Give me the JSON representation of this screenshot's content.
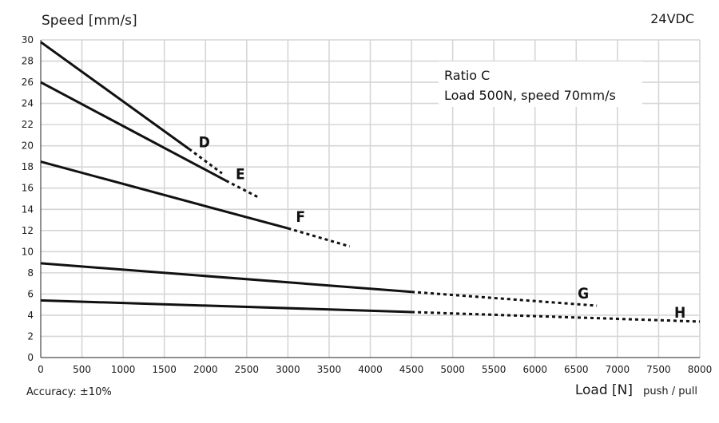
{
  "chart_data": {
    "type": "line",
    "xlabel": "Load [N]",
    "xlabel_suffix": "push / pull",
    "ylabel": "Speed [mm/s]",
    "xlim": [
      0,
      8000
    ],
    "ylim": [
      0,
      30
    ],
    "x_ticks": [
      0,
      500,
      1000,
      1500,
      2000,
      2500,
      3000,
      3500,
      4000,
      4500,
      5000,
      5500,
      6000,
      6500,
      7000,
      7500,
      8000
    ],
    "y_ticks": [
      0,
      2,
      4,
      6,
      8,
      10,
      12,
      14,
      16,
      18,
      20,
      22,
      24,
      26,
      28,
      30
    ],
    "grid": true,
    "corner_label": "24VDC",
    "note": "Accuracy: ±10%",
    "info_box": [
      "Ratio C",
      "Load 500N, speed 70mm/s"
    ],
    "series": [
      {
        "name": "D",
        "solid": [
          [
            0,
            29.8
          ],
          [
            1800,
            19.7
          ]
        ],
        "dashed": [
          [
            1800,
            19.7
          ],
          [
            2200,
            17.4
          ]
        ]
      },
      {
        "name": "E",
        "solid": [
          [
            0,
            26.0
          ],
          [
            2250,
            16.7
          ]
        ],
        "dashed": [
          [
            2250,
            16.7
          ],
          [
            2650,
            15.1
          ]
        ]
      },
      {
        "name": "F",
        "solid": [
          [
            0,
            18.5
          ],
          [
            3000,
            12.2
          ]
        ],
        "dashed": [
          [
            3000,
            12.2
          ],
          [
            3750,
            10.5
          ]
        ]
      },
      {
        "name": "G",
        "solid": [
          [
            0,
            8.9
          ],
          [
            4500,
            6.2
          ]
        ],
        "dashed": [
          [
            4500,
            6.2
          ],
          [
            6750,
            4.9
          ]
        ]
      },
      {
        "name": "H",
        "solid": [
          [
            0,
            5.4
          ],
          [
            4500,
            4.3
          ]
        ],
        "dashed": [
          [
            4500,
            4.3
          ],
          [
            8000,
            3.4
          ]
        ]
      }
    ]
  }
}
